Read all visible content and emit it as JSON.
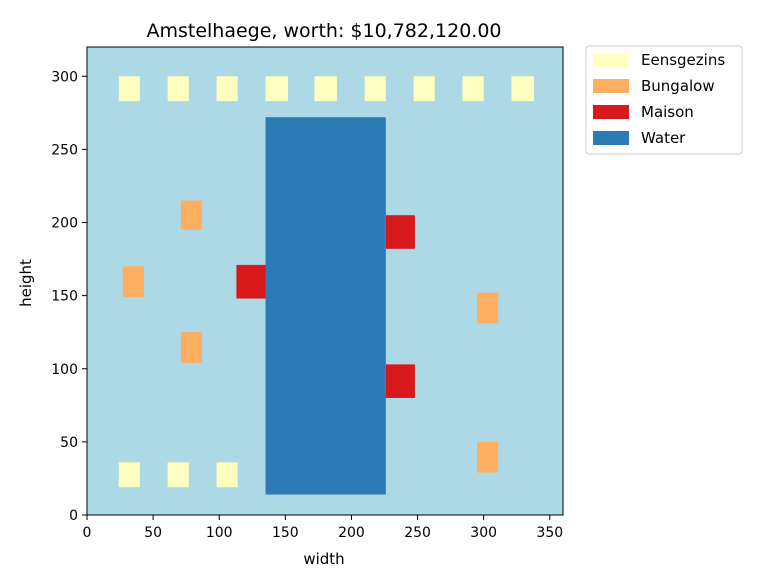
{
  "chart_data": {
    "type": "scatter",
    "title": "Amstelhaege, worth: $10,782,120.00",
    "xlabel": "width",
    "ylabel": "height",
    "xlim": [
      0,
      360
    ],
    "ylim": [
      0,
      320
    ],
    "xticks": [
      0,
      50,
      100,
      150,
      200,
      250,
      300,
      350
    ],
    "yticks": [
      0,
      50,
      100,
      150,
      200,
      250,
      300
    ],
    "grid": false,
    "legend_placement": "outside-upper-right",
    "background_color": "#add8e6",
    "categories": [
      {
        "name": "Eensgezins",
        "color": "#ffffbf"
      },
      {
        "name": "Bungalow",
        "color": "#fdae61"
      },
      {
        "name": "Maison",
        "color": "#d7191c"
      },
      {
        "name": "Water",
        "color": "#2c7bb6"
      }
    ],
    "items": [
      {
        "category": "Water",
        "x0": 135,
        "x1": 226,
        "y0": 14,
        "y1": 272
      },
      {
        "category": "Eensgezins",
        "x0": 24,
        "x1": 40,
        "y0": 283,
        "y1": 300
      },
      {
        "category": "Eensgezins",
        "x0": 61,
        "x1": 77,
        "y0": 283,
        "y1": 300
      },
      {
        "category": "Eensgezins",
        "x0": 98,
        "x1": 114,
        "y0": 283,
        "y1": 300
      },
      {
        "category": "Eensgezins",
        "x0": 135,
        "x1": 152,
        "y0": 283,
        "y1": 300
      },
      {
        "category": "Eensgezins",
        "x0": 172,
        "x1": 189,
        "y0": 283,
        "y1": 300
      },
      {
        "category": "Eensgezins",
        "x0": 210,
        "x1": 226,
        "y0": 283,
        "y1": 300
      },
      {
        "category": "Eensgezins",
        "x0": 247,
        "x1": 263,
        "y0": 283,
        "y1": 300
      },
      {
        "category": "Eensgezins",
        "x0": 284,
        "x1": 300,
        "y0": 283,
        "y1": 300
      },
      {
        "category": "Eensgezins",
        "x0": 321,
        "x1": 338,
        "y0": 283,
        "y1": 300
      },
      {
        "category": "Eensgezins",
        "x0": 24,
        "x1": 40,
        "y0": 19,
        "y1": 36
      },
      {
        "category": "Eensgezins",
        "x0": 61,
        "x1": 77,
        "y0": 19,
        "y1": 36
      },
      {
        "category": "Eensgezins",
        "x0": 98,
        "x1": 114,
        "y0": 19,
        "y1": 36
      },
      {
        "category": "Bungalow",
        "x0": 71,
        "x1": 87,
        "y0": 195,
        "y1": 215
      },
      {
        "category": "Bungalow",
        "x0": 27,
        "x1": 43,
        "y0": 149,
        "y1": 170
      },
      {
        "category": "Bungalow",
        "x0": 71,
        "x1": 87,
        "y0": 104,
        "y1": 125
      },
      {
        "category": "Bungalow",
        "x0": 295,
        "x1": 311,
        "y0": 131,
        "y1": 152
      },
      {
        "category": "Bungalow",
        "x0": 295,
        "x1": 311,
        "y0": 29,
        "y1": 50
      },
      {
        "category": "Maison",
        "x0": 113,
        "x1": 135,
        "y0": 148,
        "y1": 171
      },
      {
        "category": "Maison",
        "x0": 226,
        "x1": 248,
        "y0": 182,
        "y1": 205
      },
      {
        "category": "Maison",
        "x0": 226,
        "x1": 248,
        "y0": 80,
        "y1": 103
      }
    ]
  }
}
